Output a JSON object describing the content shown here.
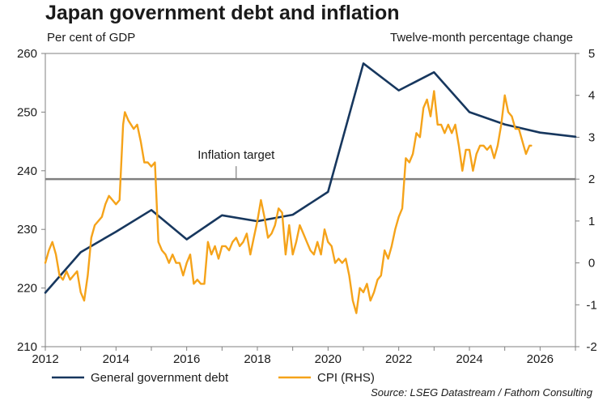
{
  "chart_data": {
    "type": "line",
    "title": "Japan government debt and inflation",
    "ylabel_left": "Per cent of GDP",
    "ylabel_right": "Twelve-month percentage change",
    "source": "Source: LSEG Datastream / Fathom Consulting",
    "xlim": [
      2012,
      2027
    ],
    "ylim_left": [
      210,
      260
    ],
    "ylim_right": [
      -2,
      5
    ],
    "x_ticks": [
      2012,
      2014,
      2016,
      2018,
      2020,
      2022,
      2024,
      2026
    ],
    "y_ticks_left": [
      210,
      220,
      230,
      240,
      250,
      260
    ],
    "y_ticks_right": [
      -2,
      -1,
      0,
      1,
      2,
      3,
      4,
      5
    ],
    "annotation": {
      "text": "Inflation target",
      "x": 2017.4,
      "y_right": 2
    },
    "target_value": 2,
    "series": [
      {
        "name": "General government debt",
        "axis": "left",
        "color": "#17375e",
        "x": [
          2012,
          2013,
          2014,
          2015,
          2016,
          2017,
          2018,
          2019,
          2020,
          2021,
          2022,
          2023,
          2024,
          2025,
          2026,
          2027
        ],
        "values": [
          219.2,
          226.1,
          229.6,
          233.3,
          228.3,
          232.4,
          231.4,
          232.5,
          236.4,
          258.3,
          253.7,
          256.8,
          250.0,
          247.9,
          246.5,
          245.8
        ]
      },
      {
        "name": "CPI (RHS)",
        "axis": "right",
        "color": "#f5a31a",
        "x": [
          2012.0,
          2012.1,
          2012.2,
          2012.3,
          2012.4,
          2012.5,
          2012.6,
          2012.7,
          2012.8,
          2012.9,
          2013.0,
          2013.1,
          2013.2,
          2013.3,
          2013.4,
          2013.5,
          2013.6,
          2013.7,
          2013.8,
          2013.9,
          2014.0,
          2014.1,
          2014.2,
          2014.25,
          2014.35,
          2014.5,
          2014.6,
          2014.7,
          2014.8,
          2014.9,
          2015.0,
          2015.1,
          2015.2,
          2015.3,
          2015.4,
          2015.5,
          2015.6,
          2015.7,
          2015.8,
          2015.9,
          2016.0,
          2016.1,
          2016.2,
          2016.3,
          2016.4,
          2016.5,
          2016.6,
          2016.7,
          2016.8,
          2016.9,
          2017.0,
          2017.1,
          2017.2,
          2017.3,
          2017.4,
          2017.5,
          2017.6,
          2017.7,
          2017.8,
          2017.9,
          2018.0,
          2018.1,
          2018.2,
          2018.3,
          2018.4,
          2018.5,
          2018.6,
          2018.7,
          2018.8,
          2018.9,
          2019.0,
          2019.1,
          2019.2,
          2019.3,
          2019.4,
          2019.5,
          2019.6,
          2019.7,
          2019.8,
          2019.9,
          2020.0,
          2020.1,
          2020.2,
          2020.3,
          2020.4,
          2020.5,
          2020.6,
          2020.7,
          2020.8,
          2020.9,
          2021.0,
          2021.1,
          2021.2,
          2021.3,
          2021.4,
          2021.5,
          2021.6,
          2021.7,
          2021.8,
          2021.9,
          2022.0,
          2022.1,
          2022.2,
          2022.3,
          2022.4,
          2022.5,
          2022.6,
          2022.7,
          2022.8,
          2022.9,
          2023.0,
          2023.1,
          2023.2,
          2023.3,
          2023.4,
          2023.5,
          2023.6,
          2023.7,
          2023.8,
          2023.9,
          2024.0,
          2024.1,
          2024.2,
          2024.3,
          2024.4,
          2024.5,
          2024.6,
          2024.7,
          2024.8,
          2024.9,
          2025.0,
          2025.1,
          2025.2,
          2025.3,
          2025.4,
          2025.5,
          2025.6,
          2025.7,
          2025.75
        ],
        "values": [
          0.0,
          0.3,
          0.5,
          0.2,
          -0.3,
          -0.4,
          -0.2,
          -0.4,
          -0.3,
          -0.2,
          -0.7,
          -0.9,
          -0.3,
          0.6,
          0.9,
          1.0,
          1.1,
          1.4,
          1.6,
          1.5,
          1.4,
          1.5,
          3.3,
          3.6,
          3.4,
          3.2,
          3.3,
          2.9,
          2.4,
          2.4,
          2.3,
          2.4,
          0.5,
          0.3,
          0.2,
          0.0,
          0.2,
          0.0,
          0.0,
          -0.3,
          0.0,
          0.2,
          -0.5,
          -0.4,
          -0.5,
          -0.5,
          0.5,
          0.2,
          0.4,
          0.1,
          0.4,
          0.4,
          0.3,
          0.5,
          0.6,
          0.4,
          0.5,
          0.7,
          0.2,
          0.6,
          1.0,
          1.5,
          1.1,
          0.6,
          0.7,
          0.9,
          1.3,
          1.2,
          0.2,
          0.9,
          0.2,
          0.5,
          0.9,
          0.7,
          0.5,
          0.3,
          0.2,
          0.5,
          0.2,
          0.8,
          0.5,
          0.4,
          0.0,
          0.1,
          0.0,
          0.1,
          -0.3,
          -0.9,
          -1.2,
          -0.6,
          -0.7,
          -0.5,
          -0.9,
          -0.7,
          -0.4,
          -0.3,
          0.3,
          0.1,
          0.4,
          0.8,
          1.1,
          1.3,
          2.5,
          2.4,
          2.6,
          3.1,
          3.0,
          3.7,
          3.9,
          3.5,
          4.1,
          3.3,
          3.3,
          3.1,
          3.3,
          3.1,
          3.3,
          2.8,
          2.2,
          2.7,
          2.7,
          2.2,
          2.6,
          2.8,
          2.8,
          2.7,
          2.8,
          2.5,
          2.8,
          3.3,
          4.0,
          3.6,
          3.5,
          3.2,
          3.2,
          2.9,
          2.6,
          2.8,
          2.8
        ]
      }
    ]
  }
}
